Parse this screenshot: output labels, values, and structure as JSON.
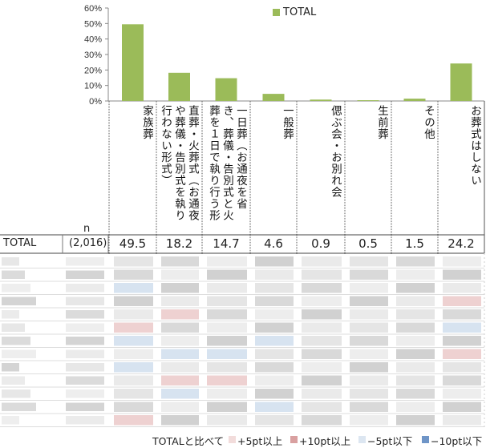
{
  "chart_data": {
    "type": "bar",
    "legend": "TOTAL",
    "legend_position": "top",
    "yticks": [
      "60%",
      "50%",
      "40%",
      "30%",
      "20%",
      "10%",
      "0%"
    ],
    "ylim": [
      0,
      60
    ],
    "bar_color": "#9bbb59",
    "categories": [
      "家族葬",
      "直葬・火葬式（お通夜や葬儀・告別式を執り行わない形式）",
      "一日葬（お通夜を省き、葬儀・告別式と火葬を１日で執り行う形式）",
      "一般葬",
      "偲ぶ会・お別れ会",
      "生前葬",
      "その他",
      "お葬式はしない"
    ],
    "series": [
      {
        "name": "TOTAL",
        "values": [
          49.5,
          18.2,
          14.7,
          4.6,
          0.9,
          0.5,
          1.5,
          24.2
        ]
      }
    ]
  },
  "table": {
    "n_header": "n",
    "row_label": "TOTAL",
    "n_value": "(2,016)",
    "values": [
      "49.5",
      "18.2",
      "14.7",
      "4.6",
      "0.9",
      "0.5",
      "1.5",
      "24.2"
    ]
  },
  "legend_bottom": {
    "intro": "TOTALと比べて",
    "items": [
      {
        "label": "+5pt以上",
        "color": "#f2dcdb"
      },
      {
        "label": "+10pt以上",
        "color": "#d9a0a0"
      },
      {
        "label": "−5pt以下",
        "color": "#dce6f1"
      },
      {
        "label": "−10pt以下",
        "color": "#6f95c7"
      }
    ]
  }
}
